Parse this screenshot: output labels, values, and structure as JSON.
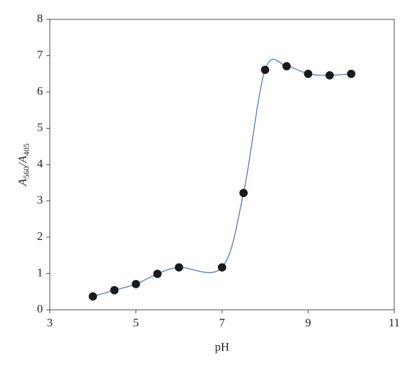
{
  "chart_data": {
    "type": "scatter",
    "x_label": "pH",
    "y_label": [
      "A",
      "560",
      "/A",
      "405"
    ],
    "x": [
      4,
      4.5,
      5,
      5.5,
      6,
      7,
      7.5,
      8,
      8.5,
      9,
      9.5,
      10
    ],
    "series": [
      {
        "color": "#1a1a1a",
        "line_color": "#4a78c4",
        "smooth": true,
        "values": [
          0.37,
          0.54,
          0.71,
          0.99,
          1.17,
          1.17,
          3.22,
          6.61,
          6.71,
          6.5,
          6.46,
          6.5
        ]
      }
    ],
    "xlim": [
      3,
      11
    ],
    "xticks": [
      3,
      5,
      7,
      9,
      11
    ],
    "ylim": [
      0,
      8
    ],
    "yticks": [
      0,
      1,
      2,
      3,
      4,
      5,
      6,
      7,
      8
    ],
    "grid": false
  }
}
